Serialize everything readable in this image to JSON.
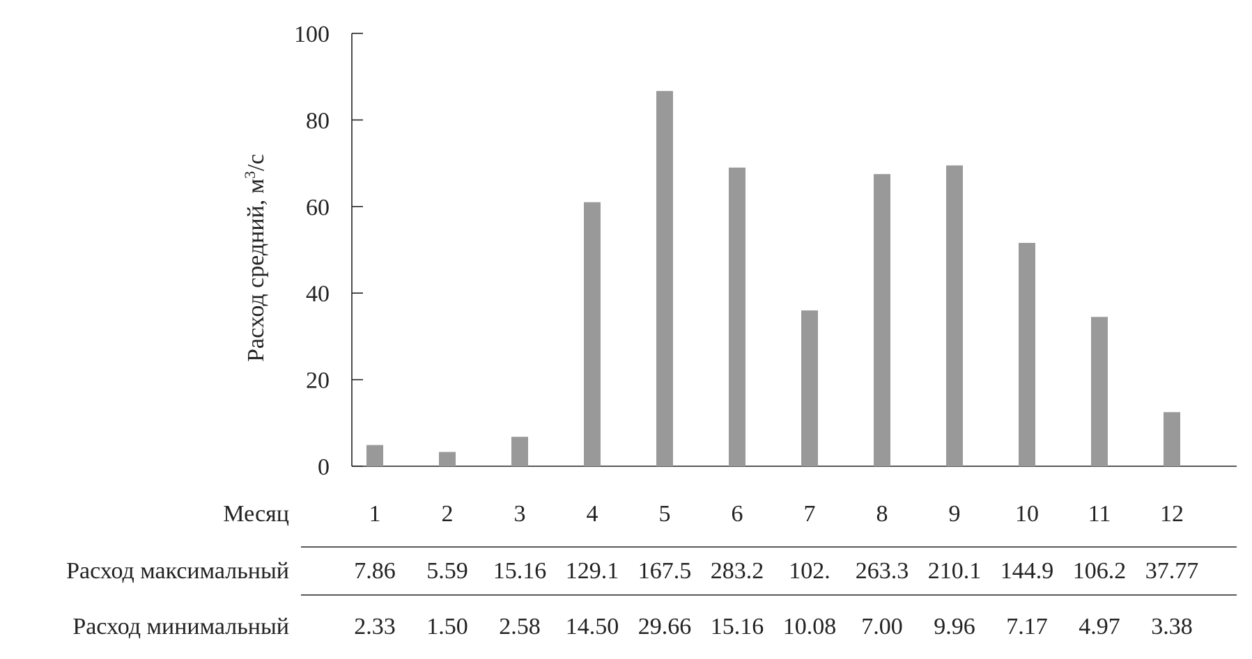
{
  "chart_data": {
    "type": "bar",
    "ylabel": "Расход средний, м",
    "ylabel_sup": "3",
    "ylabel_tail": "/с",
    "ylim": [
      0,
      100
    ],
    "yticks": [
      0,
      20,
      40,
      60,
      80,
      100
    ],
    "grid": false,
    "bar_color": "#999999",
    "categories": [
      "1",
      "2",
      "3",
      "4",
      "5",
      "6",
      "7",
      "8",
      "9",
      "10",
      "11",
      "12"
    ],
    "values": [
      4.9,
      3.3,
      6.8,
      61.0,
      86.7,
      69.0,
      36.0,
      67.5,
      69.5,
      51.6,
      34.5,
      12.5
    ],
    "table": {
      "header_label": "Месяц",
      "rows": [
        {
          "label": "Расход максимальный",
          "values": [
            "7.86",
            "5.59",
            "15.16",
            "129.1",
            "167.5",
            "283.2",
            "102.",
            "263.3",
            "210.1",
            "144.9",
            "106.2",
            "37.77"
          ]
        },
        {
          "label": "Расход минимальный",
          "values": [
            "2.33",
            "1.50",
            "2.58",
            "14.50",
            "29.66",
            "15.16",
            "10.08",
            "7.00",
            "9.96",
            "7.17",
            "4.97",
            "3.38"
          ]
        }
      ]
    }
  }
}
